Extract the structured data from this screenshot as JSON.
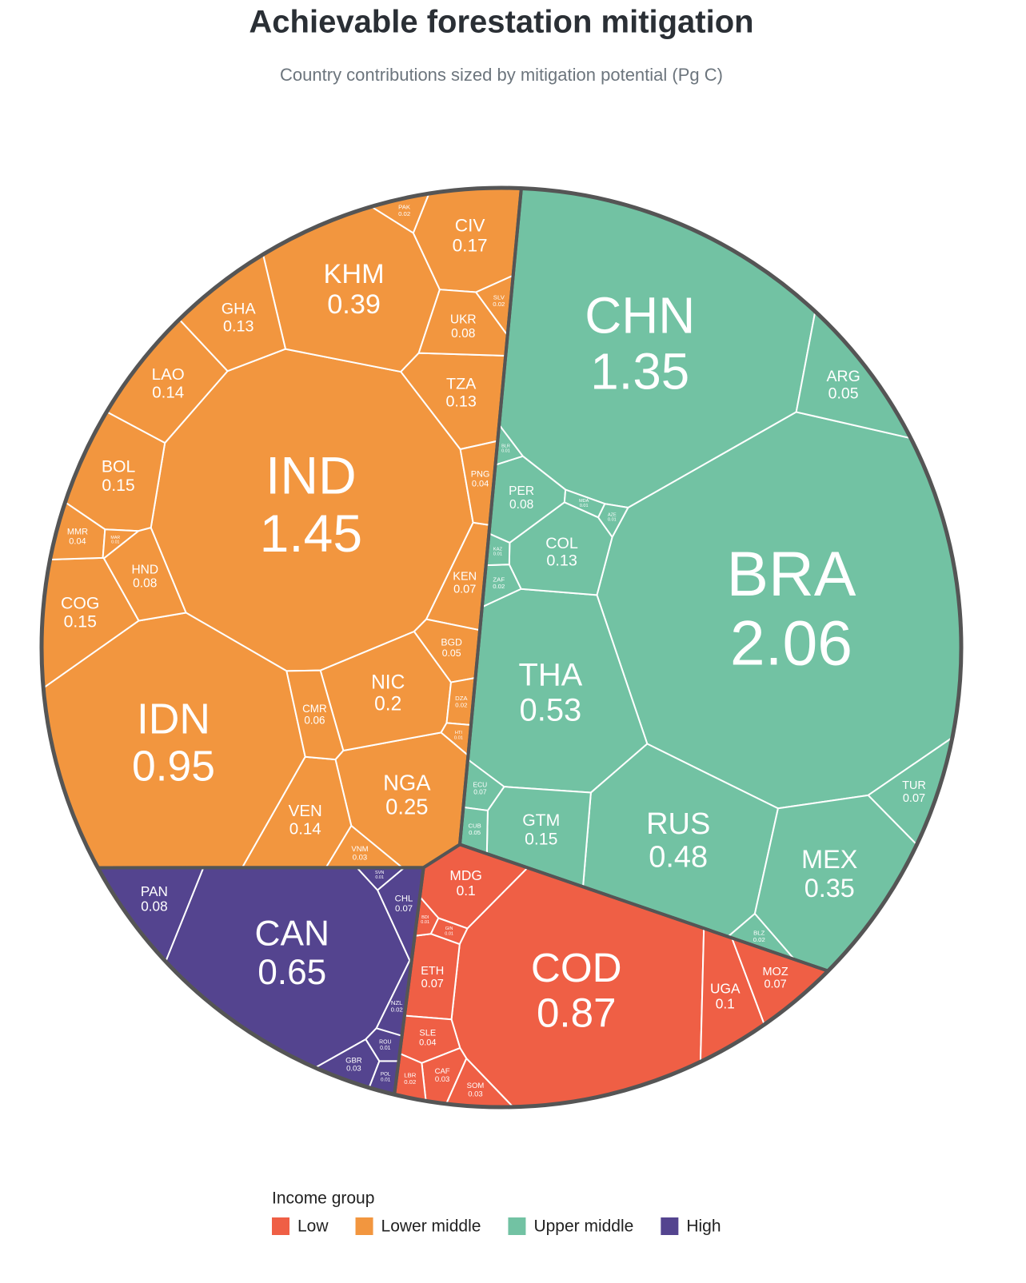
{
  "chart_data": {
    "type": "voronoi_treemap",
    "title": "Achievable forestation mitigation",
    "subtitle": "Country contributions sized by mitigation potential (Pg C)",
    "legend_title": "Income group",
    "groups": [
      {
        "name": "Low",
        "color": "#ef5f45",
        "items": [
          {
            "label": "COD",
            "value": 0.87
          },
          {
            "label": "MDG",
            "value": 0.1
          },
          {
            "label": "UGA",
            "value": 0.1
          },
          {
            "label": "ETH",
            "value": 0.07
          },
          {
            "label": "MOZ",
            "value": 0.07
          },
          {
            "label": "SLE",
            "value": 0.04
          },
          {
            "label": "CAF",
            "value": 0.03
          },
          {
            "label": "SOM",
            "value": 0.03
          },
          {
            "label": "LBR",
            "value": 0.02
          },
          {
            "label": "BDI",
            "value": 0.01
          },
          {
            "label": "GIN",
            "value": 0.01
          }
        ]
      },
      {
        "name": "Lower middle",
        "color": "#f2963f",
        "items": [
          {
            "label": "IND",
            "value": 1.45
          },
          {
            "label": "IDN",
            "value": 0.95
          },
          {
            "label": "KHM",
            "value": 0.39
          },
          {
            "label": "NGA",
            "value": 0.25
          },
          {
            "label": "NIC",
            "value": 0.2
          },
          {
            "label": "CIV",
            "value": 0.17
          },
          {
            "label": "BOL",
            "value": 0.15
          },
          {
            "label": "COG",
            "value": 0.15
          },
          {
            "label": "LAO",
            "value": 0.14
          },
          {
            "label": "VEN",
            "value": 0.14
          },
          {
            "label": "TZA",
            "value": 0.13
          },
          {
            "label": "GHA",
            "value": 0.13
          },
          {
            "label": "UKR",
            "value": 0.08
          },
          {
            "label": "HND",
            "value": 0.08
          },
          {
            "label": "KEN",
            "value": 0.07
          },
          {
            "label": "CMR",
            "value": 0.06
          },
          {
            "label": "BGD",
            "value": 0.05
          },
          {
            "label": "MMR",
            "value": 0.04
          },
          {
            "label": "PNG",
            "value": 0.04
          },
          {
            "label": "VNM",
            "value": 0.03
          },
          {
            "label": "PAK",
            "value": 0.02
          },
          {
            "label": "SLV",
            "value": 0.02
          },
          {
            "label": "DZA",
            "value": 0.02
          },
          {
            "label": "HTI",
            "value": 0.01
          },
          {
            "label": "MAR",
            "value": 0.01
          }
        ]
      },
      {
        "name": "Upper middle",
        "color": "#72c2a3",
        "items": [
          {
            "label": "BRA",
            "value": 2.06
          },
          {
            "label": "CHN",
            "value": 1.35
          },
          {
            "label": "THA",
            "value": 0.53
          },
          {
            "label": "RUS",
            "value": 0.48
          },
          {
            "label": "MEX",
            "value": 0.35
          },
          {
            "label": "GTM",
            "value": 0.15
          },
          {
            "label": "COL",
            "value": 0.13
          },
          {
            "label": "PER",
            "value": 0.08
          },
          {
            "label": "ECU",
            "value": 0.07
          },
          {
            "label": "TUR",
            "value": 0.07
          },
          {
            "label": "CUB",
            "value": 0.05
          },
          {
            "label": "ARG",
            "value": 0.05
          },
          {
            "label": "ZAF",
            "value": 0.02
          },
          {
            "label": "BLZ",
            "value": 0.02
          },
          {
            "label": "KAZ",
            "value": 0.01
          },
          {
            "label": "AZE",
            "value": 0.01
          },
          {
            "label": "BLR",
            "value": 0.01
          },
          {
            "label": "MDA",
            "value": 0.01
          }
        ]
      },
      {
        "name": "High",
        "color": "#54448f",
        "items": [
          {
            "label": "CAN",
            "value": 0.65
          },
          {
            "label": "PAN",
            "value": 0.08
          },
          {
            "label": "CHL",
            "value": 0.07
          },
          {
            "label": "GBR",
            "value": 0.03
          },
          {
            "label": "NZL",
            "value": 0.02
          },
          {
            "label": "POL",
            "value": 0.01
          },
          {
            "label": "ROU",
            "value": 0.01
          },
          {
            "label": "SVN",
            "value": 0.01
          }
        ]
      }
    ]
  }
}
